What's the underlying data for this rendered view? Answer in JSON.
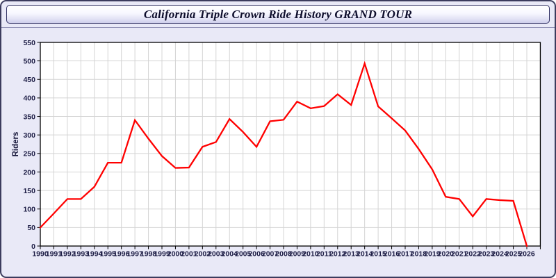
{
  "title": "California Triple Crown Ride History GRAND TOUR",
  "chart_data": {
    "type": "line",
    "title": "California Triple Crown Ride History GRAND TOUR",
    "xlabel": "",
    "ylabel": "Riders",
    "x": [
      1990,
      1991,
      1992,
      1993,
      1994,
      1995,
      1996,
      1997,
      1998,
      1999,
      2000,
      2001,
      2002,
      2003,
      2004,
      2005,
      2006,
      2007,
      2008,
      2009,
      2010,
      2011,
      2012,
      2013,
      2014,
      2015,
      2016,
      2017,
      2018,
      2019,
      2020,
      2021,
      2022,
      2023,
      2024,
      2025,
      2026
    ],
    "series": [
      {
        "name": "Riders",
        "color": "#ff0000",
        "values": [
          50,
          88,
          127,
          127,
          160,
          225,
          225,
          340,
          290,
          243,
          211,
          212,
          268,
          281,
          343,
          308,
          268,
          337,
          341,
          390,
          372,
          378,
          410,
          381,
          493,
          377,
          345,
          312,
          262,
          207,
          133,
          127,
          80,
          127,
          124,
          122,
          0
        ]
      }
    ],
    "ylim": [
      0,
      550
    ],
    "ytick_step": 50,
    "grid": true,
    "legend": "none",
    "tick_label_color": "#1e1e46",
    "grid_color": "#d4d4d4",
    "plot_background": "#ffffff"
  }
}
